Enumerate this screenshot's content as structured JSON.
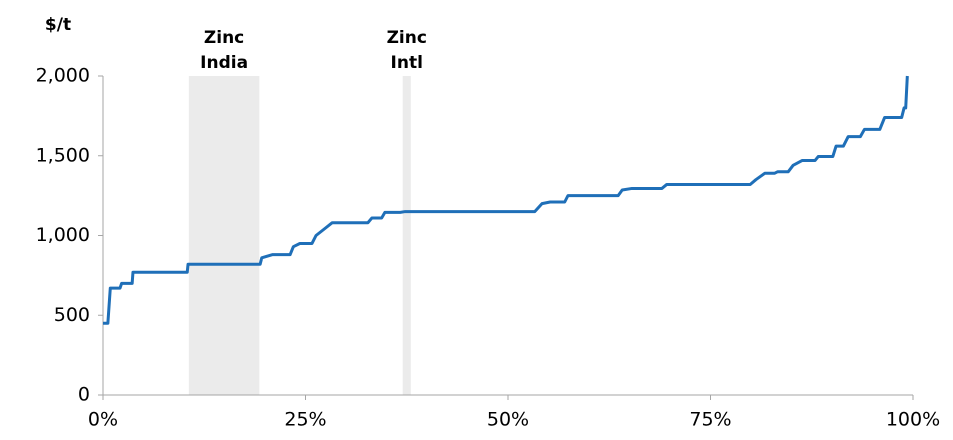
{
  "chart_data": {
    "type": "line",
    "y_axis_label": "$/t",
    "annotations": [
      {
        "lines": [
          "Zinc",
          "India"
        ],
        "xrange": [
          10.6,
          19.3
        ]
      },
      {
        "lines": [
          "Zinc",
          "Intl"
        ],
        "xrange": [
          37.0,
          38.0
        ]
      }
    ],
    "band_color": "#ebebeb",
    "xlim": [
      0,
      100
    ],
    "xticks": [
      {
        "value": 0,
        "label": "0%"
      },
      {
        "value": 25,
        "label": "25%"
      },
      {
        "value": 50,
        "label": "50%"
      },
      {
        "value": 75,
        "label": "75%"
      },
      {
        "value": 100,
        "label": "100%"
      }
    ],
    "ylim": [
      0,
      2000
    ],
    "yticks": [
      0,
      500,
      {
        "value": 1000,
        "label": "1,000"
      },
      {
        "value": 1500,
        "label": "1,500"
      },
      {
        "value": 2000,
        "label": "2,000"
      }
    ],
    "series": [
      {
        "color": "#1f6fb8",
        "x": [
          0,
          0.6,
          0.9,
          2.1,
          2.3,
          3.6,
          3.7,
          10.4,
          10.5,
          19.4,
          19.6,
          20.9,
          23.1,
          23.5,
          24.3,
          25.8,
          26.3,
          27.3,
          28.3,
          32.7,
          33.2,
          34.4,
          34.8,
          36.7,
          37.3,
          53.3,
          54.2,
          55.2,
          57.0,
          57.4,
          63.6,
          64.1,
          65.3,
          69.0,
          69.6,
          79.9,
          80.6,
          81.7,
          82.9,
          83.3,
          84.6,
          85.2,
          86.3,
          87.9,
          88.3,
          90.1,
          90.5,
          91.4,
          92.0,
          93.5,
          94.0,
          95.9,
          96.5,
          98.6,
          98.9,
          99.1,
          99.3
        ],
        "values": [
          450,
          450,
          670,
          670,
          700,
          700,
          770,
          770,
          820,
          820,
          860,
          880,
          880,
          930,
          950,
          950,
          1000,
          1040,
          1080,
          1080,
          1110,
          1110,
          1145,
          1145,
          1150,
          1150,
          1200,
          1210,
          1210,
          1250,
          1250,
          1285,
          1295,
          1295,
          1320,
          1320,
          1350,
          1390,
          1390,
          1400,
          1400,
          1440,
          1470,
          1470,
          1495,
          1495,
          1560,
          1560,
          1620,
          1620,
          1665,
          1665,
          1740,
          1740,
          1800,
          1800,
          2000
        ]
      }
    ]
  }
}
